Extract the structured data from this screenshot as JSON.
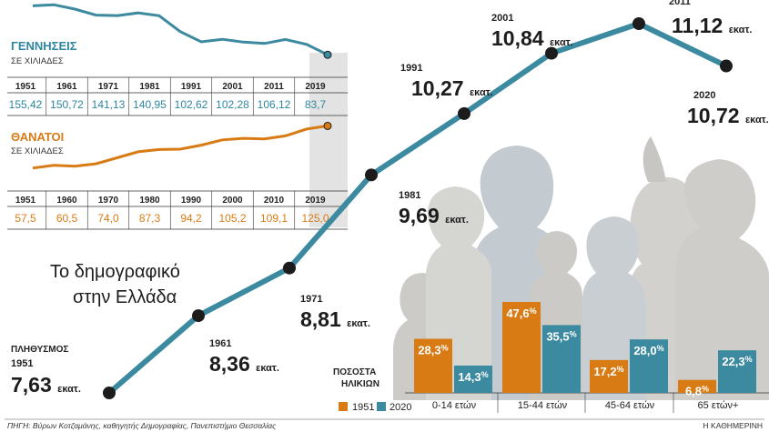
{
  "title": {
    "line1": "Το δημογραφικό",
    "line2": "στην Ελλάδα"
  },
  "colors": {
    "teal": "#2e86a0",
    "orange": "#d97b14",
    "line": "#3c8aa0",
    "dark": "#1c1c1c"
  },
  "chart_data": [
    {
      "type": "line",
      "title": "ΠΛΗΘΥΣΜΟΣ",
      "unit": "εκατ.",
      "x": [
        "1951",
        "1961",
        "1971",
        "1981",
        "1991",
        "2001",
        "2011",
        "2020"
      ],
      "values": [
        7.63,
        8.36,
        8.81,
        9.69,
        10.27,
        10.84,
        11.12,
        10.72
      ],
      "labels": [
        "7,63",
        "8,36",
        "8,81",
        "9,69",
        "10,27",
        "10,84",
        "11,12",
        "10,72"
      ]
    },
    {
      "type": "table",
      "title": "ΓΕΝΝΗΣΕΙΣ",
      "subtitle": "ΣΕ ΧΙΛΙΑΔΕΣ",
      "years": [
        "1951",
        "1961",
        "1971",
        "1981",
        "1991",
        "2001",
        "2011",
        "2019"
      ],
      "values": [
        "155,42",
        "150,72",
        "141,13",
        "140,95",
        "102,62",
        "102,28",
        "106,12",
        "83,7"
      ]
    },
    {
      "type": "table",
      "title": "ΘΑΝΑΤΟΙ",
      "subtitle": "ΣΕ ΧΙΛΙΑΔΕΣ",
      "years": [
        "1951",
        "1960",
        "1970",
        "1980",
        "1990",
        "2000",
        "2010",
        "2019"
      ],
      "values": [
        "57,5",
        "60,5",
        "74,0",
        "87,3",
        "94,2",
        "105,2",
        "109,1",
        "125,0"
      ]
    },
    {
      "type": "bar",
      "title": "ΠΟΣΟΣΤΑ ΗΛΙΚΙΩΝ",
      "categories": [
        "0-14 ετών",
        "15-44 ετών",
        "45-64 ετών",
        "65 ετών+"
      ],
      "series": [
        {
          "name": "1951",
          "values": [
            28.3,
            47.6,
            17.2,
            6.8
          ],
          "labels": [
            "28,3",
            "47,6",
            "17,2",
            "6,8"
          ]
        },
        {
          "name": "2020",
          "values": [
            14.3,
            35.5,
            28.0,
            22.3
          ],
          "labels": [
            "14,3",
            "35,5",
            "28,0",
            "22,3"
          ]
        }
      ],
      "ylim": [
        0,
        50
      ]
    }
  ],
  "footer": {
    "source": "ΠΗΓΗ: Βύρων Κοτζαμάνης, καθηγητής Δημογραφίας, Πανεπιστήμιο Θεσσαλίας",
    "credit": "Η ΚΑΘΗΜΕΡΙΝΗ"
  }
}
